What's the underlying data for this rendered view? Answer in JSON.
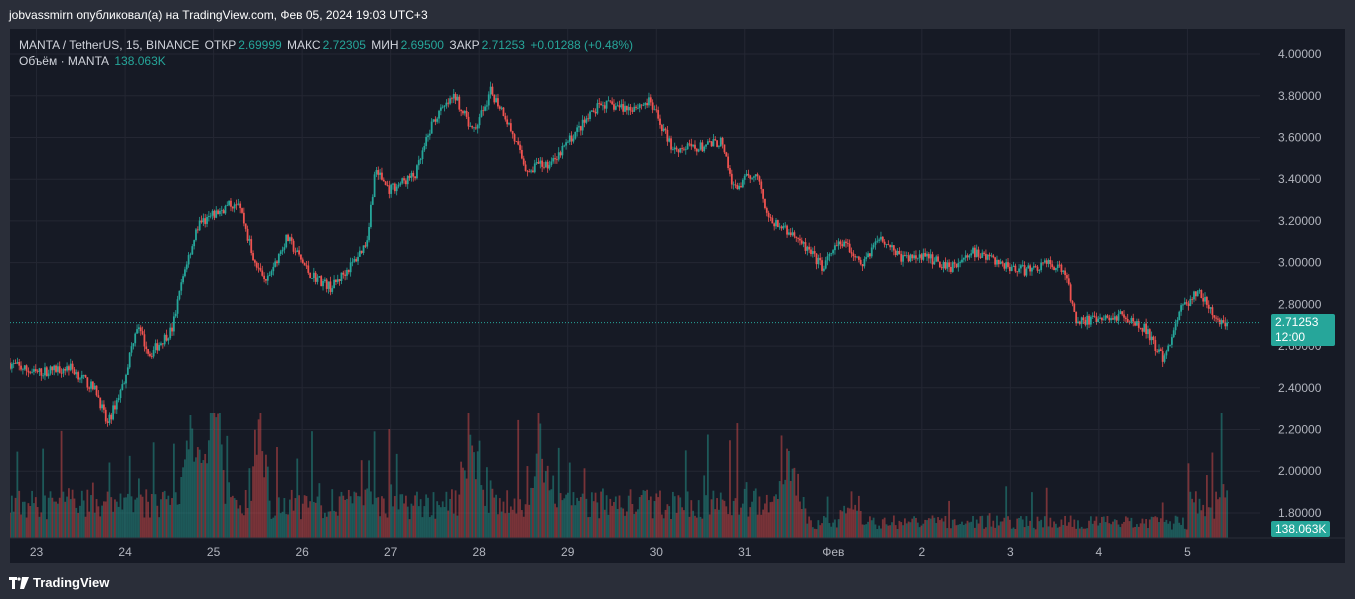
{
  "publisher": "jobvassmirn опубликовал(а) на TradingView.com, Фев 05, 2024 19:03 UTC+3",
  "legend": {
    "symbol": "MANTA / TetherUS, 15, BINANCE",
    "open_label": "ОТКР",
    "open": "2.69999",
    "high_label": "МАКС",
    "high": "2.72305",
    "low_label": "МИН",
    "low": "2.69500",
    "close_label": "ЗАКР",
    "close": "2.71253",
    "change": "+0.01288 (+0.48%)",
    "volume_label": "Объём · MANTA",
    "volume": "138.063K"
  },
  "price_badge": {
    "price": "2.71253",
    "time": "12:00"
  },
  "volume_badge": "138.063K",
  "brand": "TradingView",
  "colors": {
    "up": "#26a69a",
    "down": "#ef5350",
    "background": "#161a25",
    "grid": "#242733",
    "text": "#b2b5be"
  },
  "chart_data": {
    "type": "candlestick",
    "y_ticks": [
      "4.00000",
      "3.80000",
      "3.60000",
      "3.40000",
      "3.20000",
      "3.00000",
      "2.80000",
      "2.60000",
      "2.40000",
      "2.20000",
      "2.00000",
      "1.80000"
    ],
    "ylim": [
      1.68,
      4.12
    ],
    "x_labels": [
      "23",
      "24",
      "25",
      "26",
      "27",
      "28",
      "29",
      "30",
      "31",
      "Фев",
      "2",
      "3",
      "4",
      "5"
    ],
    "x": [
      0,
      1,
      2,
      3,
      4,
      5,
      6,
      7,
      8,
      9,
      10,
      11,
      12,
      13
    ],
    "xlim": [
      -0.3,
      13.82
    ],
    "last_price": 2.71253,
    "price_path": [
      [
        -0.3,
        2.52
      ],
      [
        0.0,
        2.47
      ],
      [
        0.4,
        2.5
      ],
      [
        0.7,
        2.38
      ],
      [
        0.82,
        2.22
      ],
      [
        1.0,
        2.42
      ],
      [
        1.15,
        2.7
      ],
      [
        1.3,
        2.56
      ],
      [
        1.55,
        2.68
      ],
      [
        1.7,
        2.98
      ],
      [
        1.85,
        3.18
      ],
      [
        2.1,
        3.25
      ],
      [
        2.3,
        3.3
      ],
      [
        2.45,
        3.05
      ],
      [
        2.6,
        2.9
      ],
      [
        2.85,
        3.12
      ],
      [
        3.1,
        2.95
      ],
      [
        3.35,
        2.88
      ],
      [
        3.6,
        3.0
      ],
      [
        3.75,
        3.1
      ],
      [
        3.85,
        3.45
      ],
      [
        4.0,
        3.35
      ],
      [
        4.3,
        3.42
      ],
      [
        4.5,
        3.68
      ],
      [
        4.75,
        3.8
      ],
      [
        4.95,
        3.62
      ],
      [
        5.15,
        3.82
      ],
      [
        5.3,
        3.72
      ],
      [
        5.55,
        3.45
      ],
      [
        5.85,
        3.48
      ],
      [
        6.1,
        3.62
      ],
      [
        6.4,
        3.76
      ],
      [
        6.7,
        3.74
      ],
      [
        6.95,
        3.77
      ],
      [
        7.2,
        3.55
      ],
      [
        7.5,
        3.55
      ],
      [
        7.75,
        3.58
      ],
      [
        7.9,
        3.35
      ],
      [
        8.15,
        3.44
      ],
      [
        8.3,
        3.2
      ],
      [
        8.6,
        3.12
      ],
      [
        8.9,
        2.98
      ],
      [
        9.1,
        3.1
      ],
      [
        9.35,
        3.0
      ],
      [
        9.55,
        3.13
      ],
      [
        9.8,
        3.02
      ],
      [
        10.05,
        3.03
      ],
      [
        10.35,
        2.98
      ],
      [
        10.6,
        3.05
      ],
      [
        10.95,
        2.99
      ],
      [
        11.2,
        2.96
      ],
      [
        11.45,
        3.0
      ],
      [
        11.65,
        2.95
      ],
      [
        11.75,
        2.73
      ],
      [
        12.0,
        2.72
      ],
      [
        12.3,
        2.75
      ],
      [
        12.55,
        2.68
      ],
      [
        12.75,
        2.53
      ],
      [
        12.95,
        2.78
      ],
      [
        13.15,
        2.86
      ],
      [
        13.35,
        2.72
      ],
      [
        13.45,
        2.71
      ]
    ],
    "volume_spikes": [
      [
        2.0,
        1.0
      ],
      [
        1.75,
        0.75
      ],
      [
        4.9,
        0.6
      ],
      [
        5.7,
        0.5
      ],
      [
        9.2,
        0.4
      ],
      [
        8.5,
        0.45
      ],
      [
        2.5,
        0.5
      ],
      [
        13.5,
        0.25
      ]
    ]
  }
}
